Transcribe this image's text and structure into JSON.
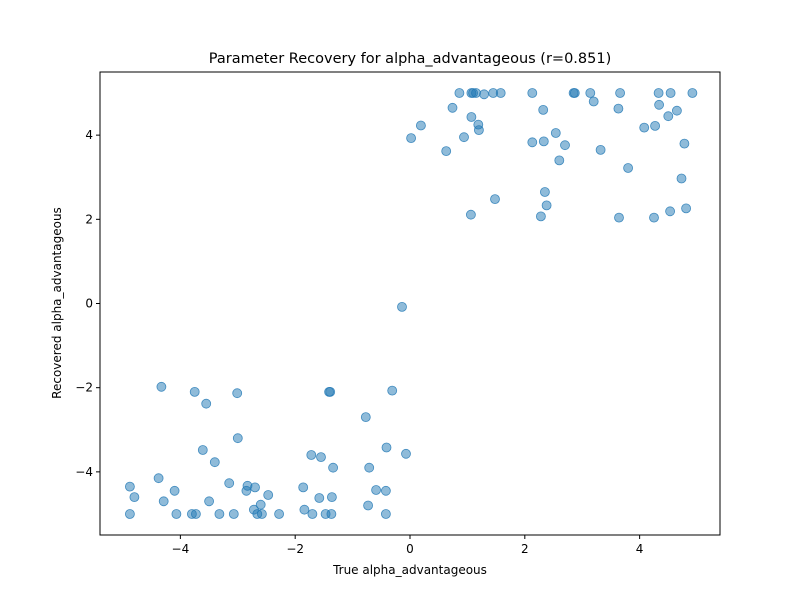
{
  "chart_data": {
    "type": "scatter",
    "title": "Parameter Recovery for alpha_advantageous (r=0.851)",
    "xlabel": "True alpha_advantageous",
    "ylabel": "Recovered alpha_advantageous",
    "xlim": [
      -5.4,
      5.4
    ],
    "ylim": [
      -5.5,
      5.5
    ],
    "xticks": [
      -4,
      -2,
      0,
      2,
      4
    ],
    "yticks": [
      -4,
      -2,
      0,
      2,
      4
    ],
    "grid": false,
    "marker_color": "#1f77b4",
    "marker_alpha": 0.5,
    "points": [
      [
        -4.88,
        -4.35
      ],
      [
        -4.88,
        -5.0
      ],
      [
        -4.8,
        -4.6
      ],
      [
        -4.38,
        -4.15
      ],
      [
        -4.33,
        -1.98
      ],
      [
        -4.29,
        -4.7
      ],
      [
        -4.1,
        -4.45
      ],
      [
        -4.07,
        -5.0
      ],
      [
        -3.8,
        -5.0
      ],
      [
        -3.75,
        -2.1
      ],
      [
        -3.73,
        -5.0
      ],
      [
        -3.61,
        -3.48
      ],
      [
        -3.55,
        -2.38
      ],
      [
        -3.5,
        -4.7
      ],
      [
        -3.4,
        -3.77
      ],
      [
        -3.32,
        -5.0
      ],
      [
        -3.15,
        -4.27
      ],
      [
        -3.07,
        -5.0
      ],
      [
        -3.01,
        -2.13
      ],
      [
        -3.0,
        -3.2
      ],
      [
        -2.85,
        -4.45
      ],
      [
        -2.83,
        -4.33
      ],
      [
        -2.72,
        -4.9
      ],
      [
        -2.7,
        -4.37
      ],
      [
        -2.66,
        -5.0
      ],
      [
        -2.6,
        -4.78
      ],
      [
        -2.58,
        -5.0
      ],
      [
        -2.47,
        -4.55
      ],
      [
        -2.28,
        -5.0
      ],
      [
        -1.86,
        -4.37
      ],
      [
        -1.84,
        -4.9
      ],
      [
        -1.72,
        -3.6
      ],
      [
        -1.7,
        -5.0
      ],
      [
        -1.58,
        -4.62
      ],
      [
        -1.55,
        -3.65
      ],
      [
        -1.47,
        -5.0
      ],
      [
        -1.41,
        -2.1
      ],
      [
        -1.39,
        -2.1
      ],
      [
        -1.37,
        -5.0
      ],
      [
        -1.36,
        -4.6
      ],
      [
        -1.34,
        -3.9
      ],
      [
        -0.77,
        -2.7
      ],
      [
        -0.73,
        -4.8
      ],
      [
        -0.71,
        -3.9
      ],
      [
        -0.59,
        -4.43
      ],
      [
        -0.42,
        -4.45
      ],
      [
        -0.42,
        -5.0
      ],
      [
        -0.41,
        -3.42
      ],
      [
        -0.31,
        -2.07
      ],
      [
        -0.14,
        -0.08
      ],
      [
        -0.07,
        -3.57
      ],
      [
        0.02,
        3.93
      ],
      [
        0.19,
        4.23
      ],
      [
        0.63,
        3.62
      ],
      [
        0.74,
        4.65
      ],
      [
        0.86,
        5.0
      ],
      [
        0.94,
        3.95
      ],
      [
        1.06,
        2.11
      ],
      [
        1.07,
        5.0
      ],
      [
        1.07,
        4.43
      ],
      [
        1.1,
        5.0
      ],
      [
        1.15,
        5.0
      ],
      [
        1.19,
        4.25
      ],
      [
        1.2,
        4.12
      ],
      [
        1.29,
        4.97
      ],
      [
        1.45,
        5.0
      ],
      [
        1.48,
        2.48
      ],
      [
        1.58,
        5.0
      ],
      [
        2.13,
        3.83
      ],
      [
        2.13,
        5.0
      ],
      [
        2.28,
        2.07
      ],
      [
        2.32,
        4.6
      ],
      [
        2.33,
        3.85
      ],
      [
        2.35,
        2.65
      ],
      [
        2.38,
        2.33
      ],
      [
        2.54,
        4.05
      ],
      [
        2.6,
        3.4
      ],
      [
        2.7,
        3.76
      ],
      [
        2.85,
        5.0
      ],
      [
        2.87,
        5.0
      ],
      [
        3.14,
        5.0
      ],
      [
        3.2,
        4.8
      ],
      [
        3.32,
        3.65
      ],
      [
        3.63,
        4.63
      ],
      [
        3.64,
        2.04
      ],
      [
        3.66,
        5.0
      ],
      [
        3.8,
        3.22
      ],
      [
        4.08,
        4.18
      ],
      [
        4.25,
        2.04
      ],
      [
        4.27,
        4.22
      ],
      [
        4.33,
        5.0
      ],
      [
        4.34,
        4.72
      ],
      [
        4.5,
        4.45
      ],
      [
        4.53,
        2.19
      ],
      [
        4.54,
        5.0
      ],
      [
        4.65,
        4.58
      ],
      [
        4.73,
        2.97
      ],
      [
        4.78,
        3.8
      ],
      [
        4.81,
        2.26
      ],
      [
        4.92,
        5.0
      ]
    ]
  }
}
